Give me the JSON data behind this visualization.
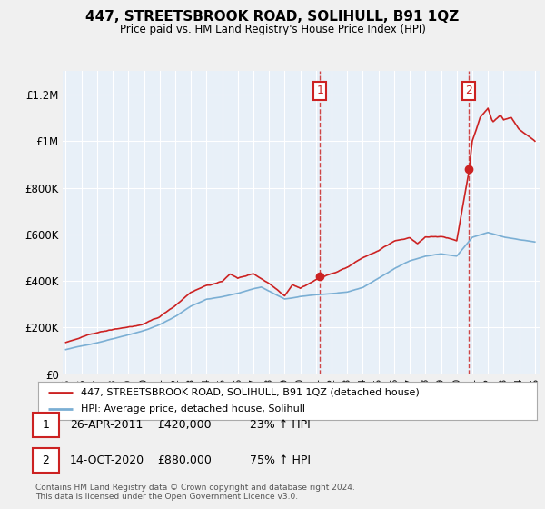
{
  "title": "447, STREETSBROOK ROAD, SOLIHULL, B91 1QZ",
  "subtitle": "Price paid vs. HM Land Registry's House Price Index (HPI)",
  "footer": "Contains HM Land Registry data © Crown copyright and database right 2024.\nThis data is licensed under the Open Government Licence v3.0.",
  "legend_line1": "447, STREETSBROOK ROAD, SOLIHULL, B91 1QZ (detached house)",
  "legend_line2": "HPI: Average price, detached house, Solihull",
  "transaction1_date": "26-APR-2011",
  "transaction1_price": "£420,000",
  "transaction1_hpi": "23% ↑ HPI",
  "transaction2_date": "14-OCT-2020",
  "transaction2_price": "£880,000",
  "transaction2_hpi": "75% ↑ HPI",
  "hpi_color": "#7bafd4",
  "price_color": "#cc2222",
  "marker_color": "#cc2222",
  "vline_color": "#cc3333",
  "background_color": "#f0f0f0",
  "plot_bg_color": "#e8f0f8",
  "grid_color": "#ffffff",
  "ylim": [
    0,
    1300000
  ],
  "yticks": [
    0,
    200000,
    400000,
    600000,
    800000,
    1000000,
    1200000
  ],
  "ytick_labels": [
    "£0",
    "£200K",
    "£400K",
    "£600K",
    "£800K",
    "£1M",
    "£1.2M"
  ],
  "transaction1_year": 2011.25,
  "transaction2_year": 2020.79,
  "transaction1_value": 420000,
  "transaction2_value": 880000
}
